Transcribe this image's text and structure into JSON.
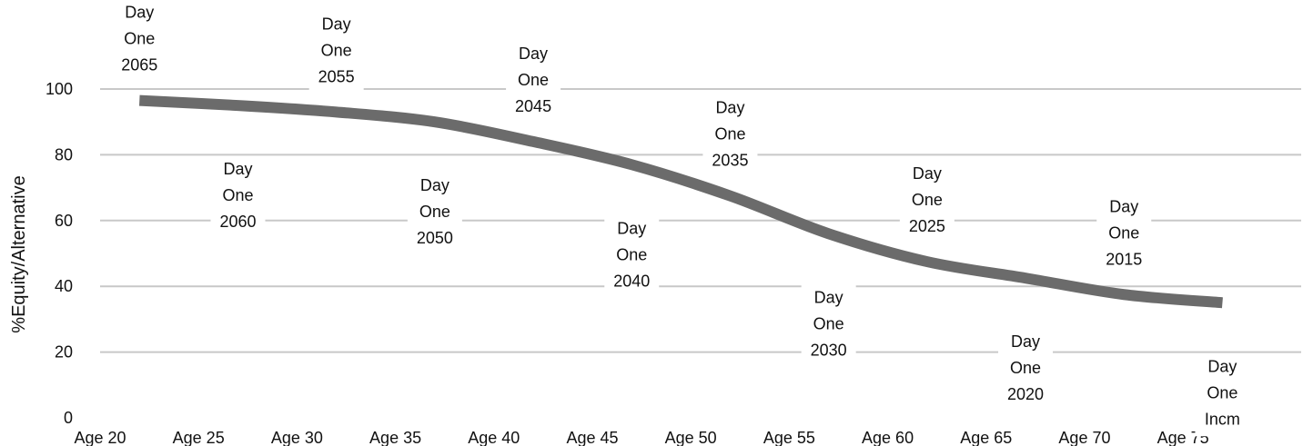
{
  "chart_data": {
    "type": "line",
    "ylabel": "%Equity/Alternative",
    "xlabel": "",
    "ylim": [
      0,
      100
    ],
    "yticks": [
      0,
      20,
      40,
      60,
      80,
      100
    ],
    "grid": true,
    "x_tick_labels": [
      "Age 20",
      "Age 25",
      "Age 30",
      "Age 35",
      "Age 40",
      "Age 45",
      "Age 50",
      "Age 55",
      "Age 60",
      "Age 65",
      "Age 70",
      "Age 75"
    ],
    "x_range": [
      20,
      81
    ],
    "line_color": "#6b6b6b",
    "series": [
      {
        "points": [
          {
            "x": 22,
            "y": 96.5,
            "label": [
              "Day",
              "One",
              "2065"
            ]
          },
          {
            "x": 27,
            "y": 95,
            "label": [
              "Day",
              "One",
              "2060"
            ]
          },
          {
            "x": 32,
            "y": 93,
            "label": [
              "Day",
              "One",
              "2055"
            ]
          },
          {
            "x": 37,
            "y": 90,
            "label": [
              "Day",
              "One",
              "2050"
            ]
          },
          {
            "x": 42,
            "y": 84,
            "label": [
              "Day",
              "One",
              "2045"
            ]
          },
          {
            "x": 47,
            "y": 77,
            "label": [
              "Day",
              "One",
              "2040"
            ]
          },
          {
            "x": 52,
            "y": 67.5,
            "label": [
              "Day",
              "One",
              "2035"
            ]
          },
          {
            "x": 57,
            "y": 56,
            "label": [
              "Day",
              "One",
              "2030"
            ]
          },
          {
            "x": 62,
            "y": 47.5,
            "label": [
              "Day",
              "One",
              "2025"
            ]
          },
          {
            "x": 67,
            "y": 42.5,
            "label": [
              "Day",
              "One",
              "2020"
            ]
          },
          {
            "x": 72,
            "y": 37.5,
            "label": [
              "Day",
              "One",
              "2015"
            ]
          },
          {
            "x": 77,
            "y": 35,
            "label": [
              "Day",
              "One",
              "Incm"
            ]
          }
        ]
      }
    ]
  }
}
